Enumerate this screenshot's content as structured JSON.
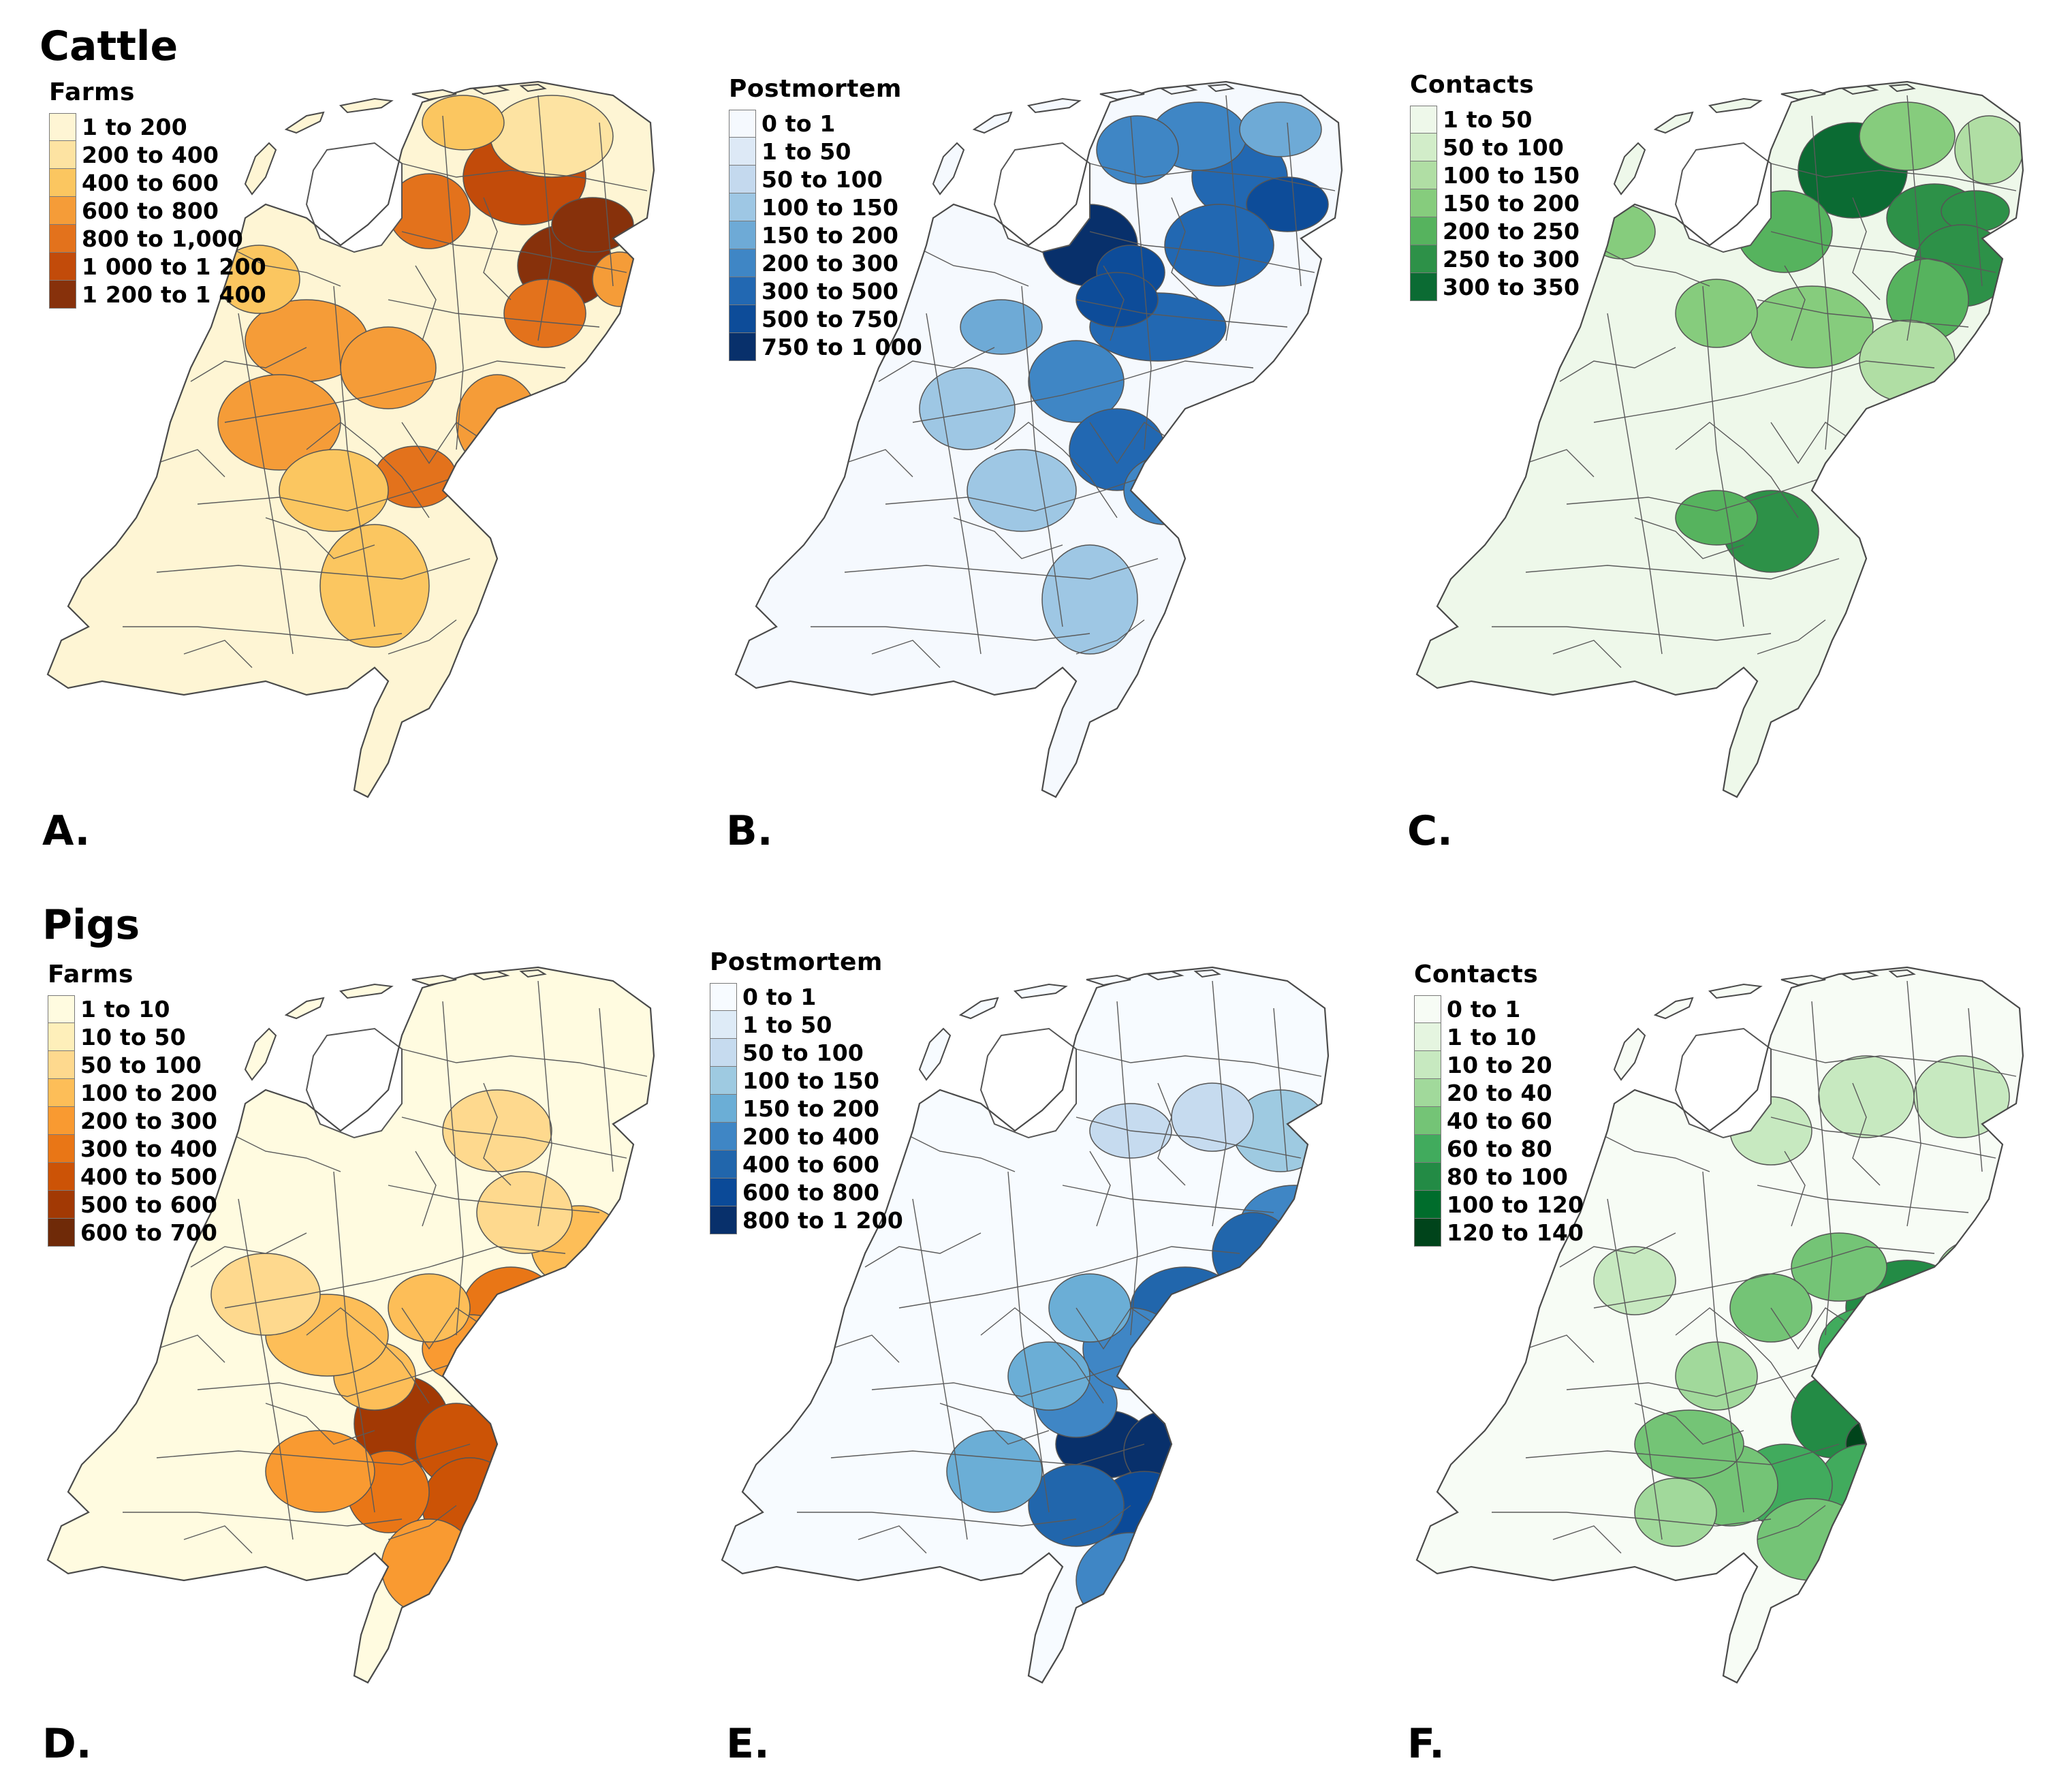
{
  "sections": {
    "cattle": {
      "title": "Cattle"
    },
    "pigs": {
      "title": "Pigs"
    }
  },
  "panels": [
    {
      "letter": "A.",
      "legend_title": "Farms",
      "palette": "oranges",
      "legend": [
        {
          "label": "1 to 200",
          "color": "#fef5d4"
        },
        {
          "label": "200 to 400",
          "color": "#fde3a2"
        },
        {
          "label": "400 to 600",
          "color": "#fbc660"
        },
        {
          "label": "600 to 800",
          "color": "#f59c38"
        },
        {
          "label": "800 to 1,000",
          "color": "#e3721c"
        },
        {
          "label": "1 000 to 1 200",
          "color": "#c24b0a"
        },
        {
          "label": "1 200 to 1 400",
          "color": "#87310b"
        }
      ]
    },
    {
      "letter": "B.",
      "legend_title": "Postmortem",
      "palette": "blues",
      "legend": [
        {
          "label": "0 to 1",
          "color": "#f5f9fe"
        },
        {
          "label": "1 to 50",
          "color": "#dde9f6"
        },
        {
          "label": "50 to 100",
          "color": "#c4d9ee"
        },
        {
          "label": "100 to 150",
          "color": "#9ec7e4"
        },
        {
          "label": "150 to 200",
          "color": "#6eaad6"
        },
        {
          "label": "200 to 300",
          "color": "#3f86c5"
        },
        {
          "label": "300 to 500",
          "color": "#2268b2"
        },
        {
          "label": "500 to 750",
          "color": "#0d4c99"
        },
        {
          "label": "750 to 1 000",
          "color": "#08306b"
        }
      ]
    },
    {
      "letter": "C.",
      "legend_title": "Contacts",
      "palette": "greens",
      "legend": [
        {
          "label": "1 to 50",
          "color": "#eef8ea"
        },
        {
          "label": "50 to 100",
          "color": "#d2edc9"
        },
        {
          "label": "100 to 150",
          "color": "#b0dea4"
        },
        {
          "label": "150 to 200",
          "color": "#86cc7d"
        },
        {
          "label": "200 to 250",
          "color": "#56b35e"
        },
        {
          "label": "250 to 300",
          "color": "#2d9148"
        },
        {
          "label": "300 to 350",
          "color": "#0b6b33"
        }
      ]
    },
    {
      "letter": "D.",
      "legend_title": "Farms",
      "palette": "oranges",
      "legend": [
        {
          "label": "1 to 10",
          "color": "#fffbe0"
        },
        {
          "label": "10 to 50",
          "color": "#feefba"
        },
        {
          "label": "50 to 100",
          "color": "#fed98e"
        },
        {
          "label": "100 to 200",
          "color": "#fdbe58"
        },
        {
          "label": "200 to 300",
          "color": "#f99a31"
        },
        {
          "label": "300 to 400",
          "color": "#e97616"
        },
        {
          "label": "400 to 500",
          "color": "#cc5306"
        },
        {
          "label": "500 to 600",
          "color": "#a23904"
        },
        {
          "label": "600 to 700",
          "color": "#6f2a08"
        }
      ]
    },
    {
      "letter": "E.",
      "legend_title": "Postmortem",
      "palette": "blues",
      "legend": [
        {
          "label": "0 to 1",
          "color": "#f7fbff"
        },
        {
          "label": "1 to 50",
          "color": "#deebf7"
        },
        {
          "label": "50 to 100",
          "color": "#c6dbef"
        },
        {
          "label": "100 to 150",
          "color": "#9ecae1"
        },
        {
          "label": "150 to 200",
          "color": "#6baed6"
        },
        {
          "label": "200 to 400",
          "color": "#3f86c5"
        },
        {
          "label": "400 to 600",
          "color": "#2166ac"
        },
        {
          "label": "600 to 800",
          "color": "#0b4a98"
        },
        {
          "label": "800 to 1 200",
          "color": "#08306b"
        }
      ]
    },
    {
      "letter": "F.",
      "legend_title": "Contacts",
      "palette": "greens",
      "legend": [
        {
          "label": "0 to 1",
          "color": "#f7fcf5"
        },
        {
          "label": "1 to 10",
          "color": "#e5f5e0"
        },
        {
          "label": "10 to 20",
          "color": "#c7e9c0"
        },
        {
          "label": "20 to 40",
          "color": "#a1d99b"
        },
        {
          "label": "40 to 60",
          "color": "#74c476"
        },
        {
          "label": "60 to 80",
          "color": "#41ab5d"
        },
        {
          "label": "80 to 100",
          "color": "#238b45"
        },
        {
          "label": "100 to 120",
          "color": "#006d2c"
        },
        {
          "label": "120 to 140",
          "color": "#00441b"
        }
      ]
    }
  ]
}
